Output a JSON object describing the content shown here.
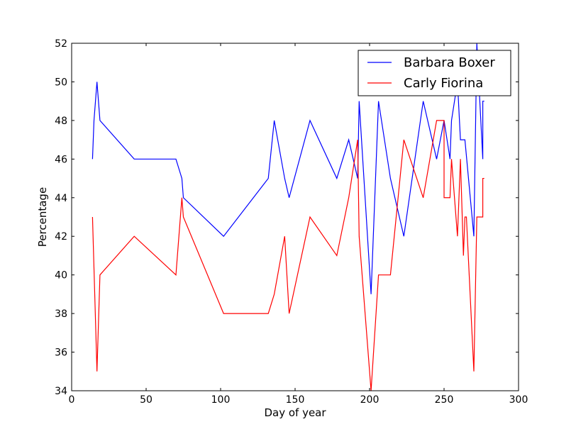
{
  "chart_data": {
    "type": "line",
    "title": "",
    "xlabel": "Day of year",
    "ylabel": "Percentage",
    "xlim": [
      0,
      300
    ],
    "ylim": [
      34,
      52
    ],
    "xticks": [
      0,
      50,
      100,
      150,
      200,
      250,
      300
    ],
    "yticks": [
      34,
      36,
      38,
      40,
      42,
      44,
      46,
      48,
      50,
      52
    ],
    "grid": false,
    "legend": "top-right",
    "series": [
      {
        "name": "Barbara Boxer",
        "color": "#0000ff",
        "x": [
          14,
          15,
          17,
          19,
          42,
          70,
          74,
          75,
          102,
          132,
          136,
          143,
          146,
          160,
          178,
          186,
          192,
          193,
          201,
          206,
          214,
          223,
          236,
          245,
          250,
          254,
          255,
          259,
          261,
          264,
          270,
          272,
          276,
          276,
          277
        ],
        "y": [
          46,
          48,
          50,
          48,
          46,
          46,
          45,
          44,
          42,
          45,
          48,
          45,
          44,
          48,
          45,
          47,
          45,
          49,
          39,
          49,
          45,
          42,
          49,
          46,
          48,
          46,
          48,
          50,
          47,
          47,
          42,
          52,
          46,
          49,
          49
        ]
      },
      {
        "name": "Carly Fiorina",
        "color": "#ff0000",
        "x": [
          14,
          17,
          19,
          42,
          70,
          74,
          75,
          102,
          132,
          136,
          143,
          146,
          160,
          178,
          186,
          192,
          193,
          201,
          206,
          214,
          223,
          236,
          245,
          250,
          250,
          254,
          255,
          259,
          261,
          263,
          264,
          265,
          270,
          272,
          276,
          276,
          277
        ],
        "y": [
          43,
          35,
          40,
          42,
          40,
          44,
          43,
          38,
          38,
          39,
          42,
          38,
          43,
          41,
          44,
          47,
          42,
          34,
          40,
          40,
          47,
          44,
          48,
          48,
          44,
          44,
          46,
          42,
          46,
          41,
          43,
          43,
          35,
          43,
          43,
          45,
          45
        ]
      }
    ]
  }
}
